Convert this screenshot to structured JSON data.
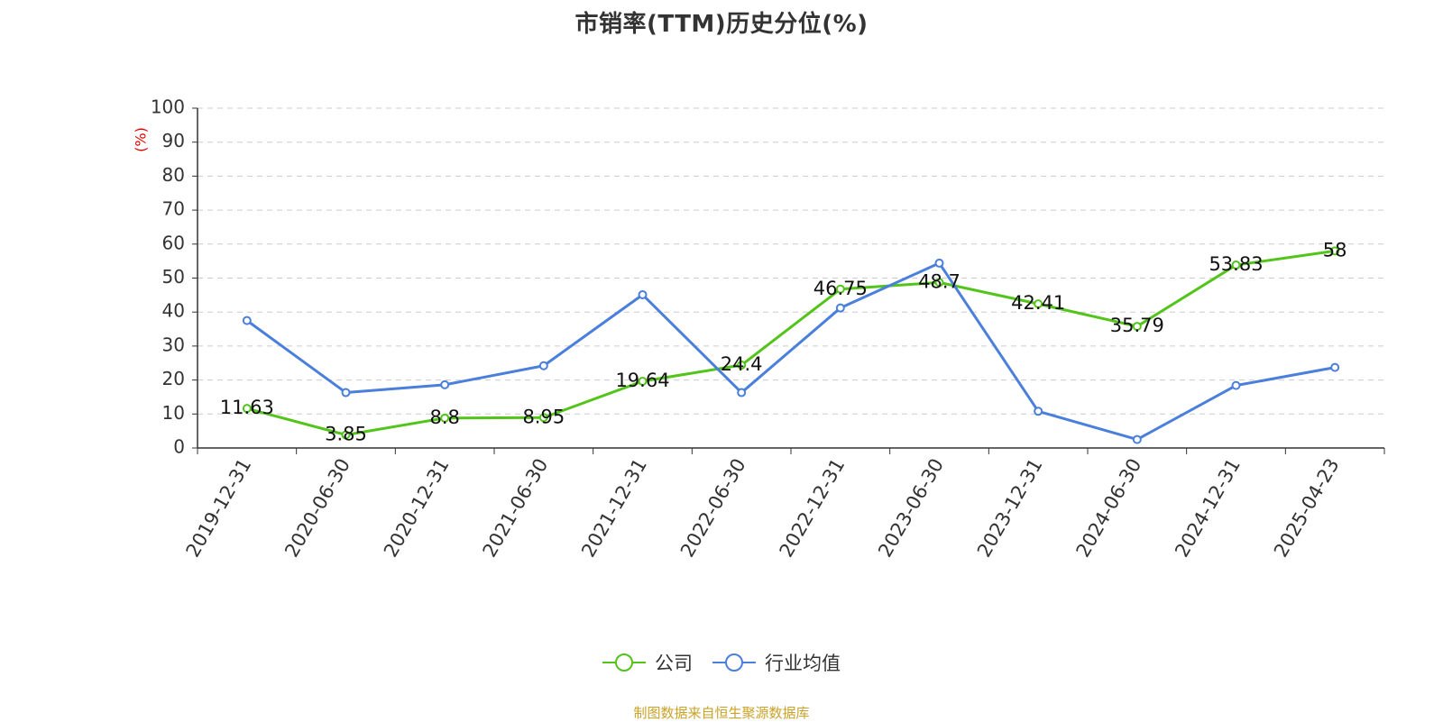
{
  "title": "市销率(TTM)历史分位(%)",
  "source_note": "制图数据来自恒生聚源数据库",
  "colors": {
    "company": "#52c41a",
    "industry": "#4a7fdc",
    "axis": "#333333",
    "grid": "#cccccc",
    "ylabel": "#e00000",
    "text": "#333333",
    "source": "#c9a227"
  },
  "chart_data": {
    "type": "line",
    "categories": [
      "2019-12-31",
      "2020-06-30",
      "2020-12-31",
      "2021-06-30",
      "2021-12-31",
      "2022-06-30",
      "2022-12-31",
      "2023-06-30",
      "2023-12-31",
      "2024-06-30",
      "2024-12-31",
      "2025-04-23"
    ],
    "series": [
      {
        "name": "公司",
        "color": "#52c41a",
        "values": [
          11.63,
          3.85,
          8.8,
          8.95,
          19.64,
          24.4,
          46.75,
          48.7,
          42.41,
          35.79,
          53.83,
          58
        ],
        "data_labels": [
          "11.63",
          "3.85",
          "8.8",
          "8.95",
          "19.64",
          "24.4",
          "46.75",
          "48.7",
          "42.41",
          "35.79",
          "53.83",
          "58"
        ]
      },
      {
        "name": "行业均值",
        "color": "#4a7fdc",
        "values": [
          37.5,
          16.3,
          18.6,
          24.2,
          45.1,
          16.3,
          41.2,
          54.4,
          10.8,
          2.5,
          18.4,
          23.7
        ]
      }
    ],
    "ylabel": "(%)",
    "ylim": [
      0,
      100
    ],
    "yticks": [
      0,
      10,
      20,
      30,
      40,
      50,
      60,
      70,
      80,
      90,
      100
    ],
    "grid": "dashed horizontal",
    "legend_position": "bottom-center"
  }
}
